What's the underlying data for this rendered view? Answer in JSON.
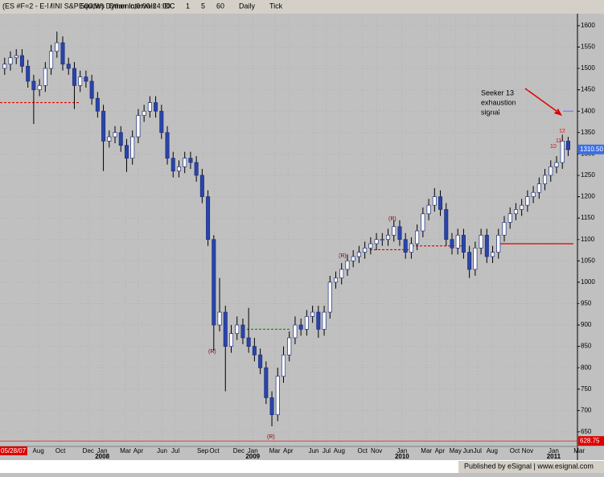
{
  "toolbar": {
    "symbol": "(ES #F=2 - E-MINI S&P 500,W) Dynamic,0:00-24:00",
    "items": [
      "Equities",
      "Other Intervals",
      "IDC",
      "1",
      "5",
      "60",
      "Daily",
      "Tick"
    ]
  },
  "chart_data": {
    "type": "candlestick",
    "open": [
      1500,
      1510,
      1525,
      1530,
      1505,
      1470,
      1450,
      1460,
      1500,
      1540,
      1560,
      1510,
      1500,
      1460,
      1480,
      1470,
      1430,
      1400,
      1330,
      1340,
      1350,
      1320,
      1290,
      1340,
      1390,
      1400,
      1420,
      1400,
      1350,
      1290,
      1260,
      1270,
      1290,
      1280,
      1250,
      1200,
      1100,
      900,
      930,
      850,
      880,
      900,
      870,
      850,
      830,
      800,
      730,
      690,
      780,
      830,
      870,
      900,
      890,
      920,
      930,
      890,
      930,
      1000,
      1010,
      1030,
      1050,
      1060,
      1070,
      1080,
      1090,
      1100,
      1100,
      1110,
      1130,
      1100,
      1070,
      1090,
      1120,
      1160,
      1180,
      1200,
      1170,
      1100,
      1080,
      1110,
      1070,
      1030,
      1080,
      1110,
      1060,
      1070,
      1110,
      1140,
      1160,
      1170,
      1180,
      1200,
      1210,
      1230,
      1250,
      1270,
      1280,
      1330
    ],
    "high": [
      1525,
      1540,
      1545,
      1545,
      1520,
      1485,
      1475,
      1515,
      1555,
      1586,
      1575,
      1525,
      1515,
      1495,
      1495,
      1485,
      1445,
      1415,
      1355,
      1365,
      1365,
      1335,
      1355,
      1405,
      1415,
      1435,
      1435,
      1415,
      1365,
      1305,
      1285,
      1305,
      1305,
      1295,
      1265,
      1215,
      1110,
      1010,
      945,
      900,
      920,
      915,
      940,
      870,
      845,
      815,
      745,
      800,
      850,
      885,
      920,
      915,
      935,
      945,
      945,
      945,
      1015,
      1025,
      1045,
      1065,
      1075,
      1085,
      1095,
      1105,
      1115,
      1115,
      1125,
      1145,
      1145,
      1115,
      1105,
      1135,
      1175,
      1195,
      1220,
      1215,
      1185,
      1115,
      1125,
      1125,
      1085,
      1095,
      1125,
      1125,
      1085,
      1125,
      1155,
      1175,
      1185,
      1195,
      1215,
      1225,
      1245,
      1265,
      1285,
      1295,
      1345,
      1340
    ],
    "low": [
      1485,
      1495,
      1510,
      1490,
      1455,
      1370,
      1435,
      1445,
      1485,
      1525,
      1495,
      1485,
      1405,
      1445,
      1455,
      1415,
      1385,
      1260,
      1315,
      1325,
      1305,
      1258,
      1275,
      1325,
      1375,
      1385,
      1385,
      1335,
      1275,
      1245,
      1245,
      1255,
      1265,
      1235,
      1185,
      1085,
      840,
      885,
      745,
      835,
      865,
      855,
      835,
      815,
      785,
      715,
      663,
      675,
      765,
      815,
      855,
      875,
      875,
      905,
      870,
      875,
      915,
      985,
      995,
      1015,
      1035,
      1045,
      1055,
      1065,
      1075,
      1085,
      1085,
      1095,
      1085,
      1055,
      1055,
      1075,
      1105,
      1145,
      1165,
      1155,
      1085,
      1065,
      1065,
      1055,
      1010,
      1015,
      1065,
      1045,
      1045,
      1055,
      1095,
      1125,
      1145,
      1155,
      1165,
      1185,
      1195,
      1215,
      1235,
      1255,
      1265,
      1295
    ],
    "close": [
      1510,
      1525,
      1530,
      1505,
      1470,
      1450,
      1460,
      1500,
      1540,
      1560,
      1510,
      1500,
      1460,
      1480,
      1470,
      1430,
      1400,
      1330,
      1340,
      1350,
      1320,
      1290,
      1340,
      1390,
      1400,
      1420,
      1400,
      1350,
      1290,
      1260,
      1270,
      1290,
      1280,
      1250,
      1200,
      1100,
      900,
      930,
      850,
      880,
      900,
      870,
      850,
      830,
      800,
      730,
      690,
      780,
      830,
      870,
      900,
      890,
      920,
      930,
      890,
      930,
      1000,
      1010,
      1030,
      1050,
      1060,
      1070,
      1080,
      1090,
      1100,
      1100,
      1110,
      1130,
      1100,
      1070,
      1090,
      1120,
      1160,
      1180,
      1200,
      1170,
      1100,
      1080,
      1110,
      1070,
      1030,
      1080,
      1110,
      1060,
      1070,
      1110,
      1140,
      1160,
      1170,
      1180,
      1200,
      1210,
      1230,
      1250,
      1270,
      1280,
      1330,
      1310
    ],
    "up_color": "#ffffff",
    "down_color": "#2b44a8",
    "outline_color": "#1a2f80",
    "xlim": [
      -0.8,
      98.6
    ],
    "xticks": [
      {
        "value": 5.8,
        "label": "Aug"
      },
      {
        "value": 9.6,
        "label": "Oct"
      },
      {
        "value": 14.4,
        "label": "Dec"
      },
      {
        "value": 16.8,
        "label": "Jan"
      },
      {
        "value": 20.8,
        "label": "Mar"
      },
      {
        "value": 23,
        "label": "Apr"
      },
      {
        "value": 27.1,
        "label": "Jun"
      },
      {
        "value": 29.4,
        "label": "Jul"
      },
      {
        "value": 34.1,
        "label": "Sep"
      },
      {
        "value": 36.1,
        "label": "Oct"
      },
      {
        "value": 40.3,
        "label": "Dec"
      },
      {
        "value": 42.7,
        "label": "Jan"
      },
      {
        "value": 46.5,
        "label": "Mar"
      },
      {
        "value": 48.8,
        "label": "Apr"
      },
      {
        "value": 53.2,
        "label": "Jun"
      },
      {
        "value": 55.4,
        "label": "Jul"
      },
      {
        "value": 57.6,
        "label": "Aug"
      },
      {
        "value": 61.6,
        "label": "Oct"
      },
      {
        "value": 64,
        "label": "Nov"
      },
      {
        "value": 68.4,
        "label": "Jan"
      },
      {
        "value": 72.6,
        "label": "Mar"
      },
      {
        "value": 74.9,
        "label": "Apr"
      },
      {
        "value": 77.6,
        "label": "May"
      },
      {
        "value": 79.8,
        "label": "Jun"
      },
      {
        "value": 81.4,
        "label": "Jul"
      },
      {
        "value": 83.9,
        "label": "Aug"
      },
      {
        "value": 87.8,
        "label": "Oct"
      },
      {
        "value": 90,
        "label": "Nov"
      },
      {
        "value": 94.5,
        "label": "Jan"
      },
      {
        "value": 98.9,
        "label": "Mar"
      }
    ],
    "year_ticks": [
      {
        "value": 16.8,
        "label": "2008"
      },
      {
        "value": 42.7,
        "label": "2009"
      },
      {
        "value": 68.4,
        "label": "2010"
      },
      {
        "value": 94.5,
        "label": "2011"
      }
    ],
    "ylim": [
      616,
      1628
    ],
    "yticks": [
      650,
      700,
      750,
      800,
      850,
      900,
      950,
      1000,
      1050,
      1100,
      1150,
      1200,
      1250,
      1300,
      1350,
      1400,
      1450,
      1500,
      1550,
      1600
    ],
    "grid": true,
    "last_price": {
      "value": 1310.5,
      "label": "1310.50"
    },
    "cursor_price": {
      "value": 628.75,
      "label": "628.75"
    },
    "start_date": "05/28/07",
    "levels": [
      {
        "value": 1420,
        "color": "#dd0000",
        "dashed": true
      },
      {
        "value": 1090,
        "color": "#dd0000",
        "dashed": false
      },
      {
        "value": 1076,
        "color": "#dd0000",
        "dashed": true
      },
      {
        "value": 1085,
        "color": "#dd0000",
        "dashed": true
      },
      {
        "value": 890,
        "color": "#118811",
        "dashed": true
      },
      {
        "value": 1400,
        "color": "#9966ff",
        "dashed": false
      }
    ],
    "annotation": [
      "Seeker 13",
      "exhaustion",
      "signal"
    ],
    "signal_labels": [
      "13",
      "12",
      "11",
      "10",
      "(R)",
      "(R)",
      "(R)",
      "(R)"
    ]
  },
  "footer": "Published by eSignal | www.esignal.com"
}
